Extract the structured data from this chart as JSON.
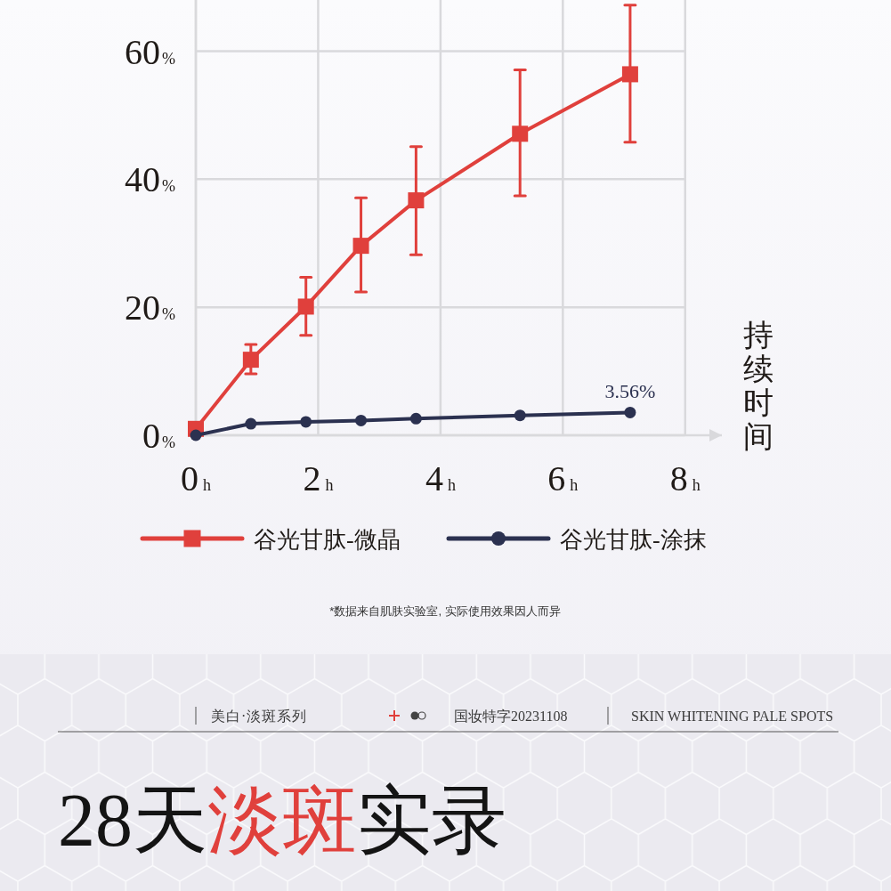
{
  "chart_data": {
    "type": "line",
    "xlabel": "持续时间",
    "xlim": [
      0,
      8.6
    ],
    "xticks": [
      {
        "value": 0,
        "label": "0h"
      },
      {
        "value": 2,
        "label": "2h"
      },
      {
        "value": 4,
        "label": "4h"
      },
      {
        "value": 6,
        "label": "6h"
      },
      {
        "value": 8,
        "label": "8h"
      }
    ],
    "ylim": [
      0,
      68
    ],
    "yticks": [
      {
        "value": 0,
        "label": "0%"
      },
      {
        "value": 20,
        "label": "20%"
      },
      {
        "value": 40,
        "label": "40%"
      },
      {
        "value": 60,
        "label": "60%"
      }
    ],
    "grid": true,
    "legend": "bottom",
    "series": [
      {
        "name": "谷光甘肽-微晶",
        "color": "#e0403c",
        "marker": "square",
        "x": [
          0,
          0.9,
          1.8,
          2.7,
          3.6,
          5.3,
          7.1
        ],
        "values": [
          1,
          11.8,
          20.1,
          29.6,
          36.7,
          47.1,
          56.4
        ],
        "errors": [
          null,
          [
            9.6,
            14.2
          ],
          [
            15.6,
            24.7
          ],
          [
            22.4,
            37.1
          ],
          [
            28.2,
            45.1
          ],
          [
            37.4,
            57.1
          ],
          [
            45.8,
            67.2
          ]
        ]
      },
      {
        "name": "谷光甘肽-涂抹",
        "color": "#2b3150",
        "marker": "circle",
        "x": [
          0,
          0.9,
          1.8,
          2.7,
          3.6,
          5.3,
          7.1
        ],
        "values": [
          0,
          1.8,
          2.1,
          2.3,
          2.6,
          3.1,
          3.56
        ],
        "value_labels": [
          null,
          null,
          null,
          null,
          null,
          null,
          "3.56%"
        ]
      }
    ],
    "annotations": [
      "*数据来自肌肤实验室, 实际使用效果因人而异",
      "美白·淡斑系列",
      "国妆特字20231108",
      "SKIN WHITENING PALE SPOTS",
      "28天",
      "淡斑",
      "实录"
    ]
  }
}
